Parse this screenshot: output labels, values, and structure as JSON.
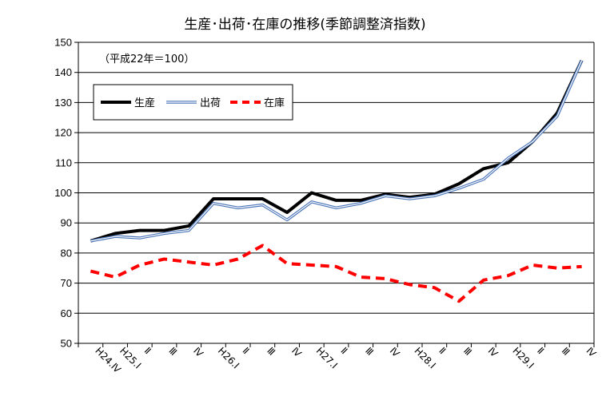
{
  "chart_data": {
    "type": "line",
    "title": "生産･出荷･在庫の推移(季節調整済指数)",
    "note": "（平成22年＝100）",
    "xlabel": "",
    "ylabel": "",
    "ylim": [
      50,
      150
    ],
    "yticks": [
      50,
      60,
      70,
      80,
      90,
      100,
      110,
      120,
      130,
      140,
      150
    ],
    "grid": true,
    "legend_position": "top-left",
    "categories": [
      "H24.Ⅳ",
      "H25.Ⅰ",
      "Ⅱ",
      "Ⅲ",
      "Ⅳ",
      "H26.Ⅰ",
      "Ⅱ",
      "Ⅲ",
      "Ⅳ",
      "H27.Ⅰ",
      "Ⅱ",
      "Ⅲ",
      "Ⅳ",
      "H28.Ⅰ",
      "Ⅱ",
      "Ⅲ",
      "Ⅳ",
      "H29.Ⅰ",
      "Ⅱ",
      "Ⅲ",
      "Ⅳ"
    ],
    "series": [
      {
        "name": "生産",
        "style": "solid-thick",
        "color": "#000000",
        "values": [
          84.0,
          86.5,
          87.5,
          87.5,
          89.0,
          98.0,
          98.0,
          98.0,
          93.5,
          100.0,
          97.5,
          97.5,
          99.5,
          98.5,
          99.5,
          103.0,
          108.0,
          110.0,
          117.0,
          126.5,
          144.0
        ]
      },
      {
        "name": "出荷",
        "style": "double-blue",
        "color": "#4a74b8",
        "values": [
          84.0,
          85.5,
          85.0,
          86.5,
          87.5,
          96.5,
          95.0,
          96.0,
          91.0,
          97.0,
          95.0,
          96.5,
          99.0,
          98.0,
          99.0,
          101.5,
          104.5,
          111.5,
          117.0,
          125.5,
          144.0
        ]
      },
      {
        "name": "在庫",
        "style": "dashed-red",
        "color": "#ff0000",
        "values": [
          74.0,
          72.0,
          76.0,
          78.0,
          77.0,
          76.0,
          78.0,
          82.5,
          76.5,
          76.0,
          75.5,
          72.0,
          71.5,
          69.5,
          68.5,
          64.0,
          71.0,
          72.5,
          76.0,
          75.0,
          75.5
        ]
      }
    ]
  }
}
